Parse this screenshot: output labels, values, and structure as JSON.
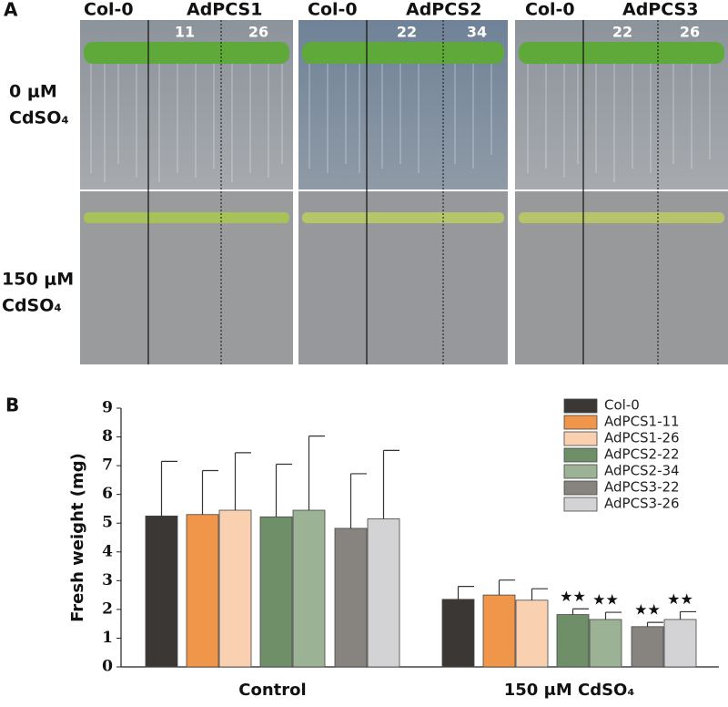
{
  "panel_a": {
    "label": "A",
    "plates": [
      {
        "control": "Col-0",
        "line": "AdPCS1",
        "lines": [
          "11",
          "26"
        ]
      },
      {
        "control": "Col-0",
        "line": "AdPCS2",
        "lines": [
          "22",
          "34"
        ]
      },
      {
        "control": "Col-0",
        "line": "AdPCS3",
        "lines": [
          "22",
          "26"
        ]
      }
    ],
    "rows": [
      [
        "0 μM",
        "CdSO₄"
      ],
      [
        "150 μM",
        "CdSO₄"
      ]
    ]
  },
  "chart_data": {
    "type": "bar",
    "panel_label": "B",
    "y_label": "Fresh weight (mg)",
    "categories": [
      "Control",
      "150 μM CdSO₄"
    ],
    "ylim": [
      0,
      9
    ],
    "yticks": [
      0,
      1,
      2,
      3,
      4,
      5,
      6,
      7,
      8,
      9
    ],
    "series": [
      {
        "name": "Col-0",
        "color": "#3a3734",
        "values": [
          5.25,
          2.35
        ],
        "errors": [
          1.9,
          0.45
        ],
        "significance": [
          null,
          null
        ]
      },
      {
        "name": "AdPCS1-11",
        "color": "#f0964a",
        "values": [
          5.3,
          2.5
        ],
        "errors": [
          1.53,
          0.52
        ],
        "significance": [
          null,
          null
        ]
      },
      {
        "name": "AdPCS1-26",
        "color": "#fad1b0",
        "values": [
          5.45,
          2.32
        ],
        "errors": [
          2.0,
          0.4
        ],
        "significance": [
          null,
          null
        ]
      },
      {
        "name": "AdPCS2-22",
        "color": "#6f8f68",
        "values": [
          5.22,
          1.82
        ],
        "errors": [
          1.83,
          0.2
        ],
        "significance": [
          null,
          "★★"
        ]
      },
      {
        "name": "AdPCS2-34",
        "color": "#9cb295",
        "values": [
          5.45,
          1.65
        ],
        "errors": [
          2.58,
          0.25
        ],
        "significance": [
          null,
          "★★"
        ]
      },
      {
        "name": "AdPCS3-22",
        "color": "#878480",
        "values": [
          4.82,
          1.4
        ],
        "errors": [
          1.9,
          0.15
        ],
        "significance": [
          null,
          "★★"
        ]
      },
      {
        "name": "AdPCS3-26",
        "color": "#d3d3d5",
        "values": [
          5.15,
          1.65
        ],
        "errors": [
          2.38,
          0.27
        ],
        "significance": [
          null,
          "★★"
        ]
      }
    ]
  }
}
